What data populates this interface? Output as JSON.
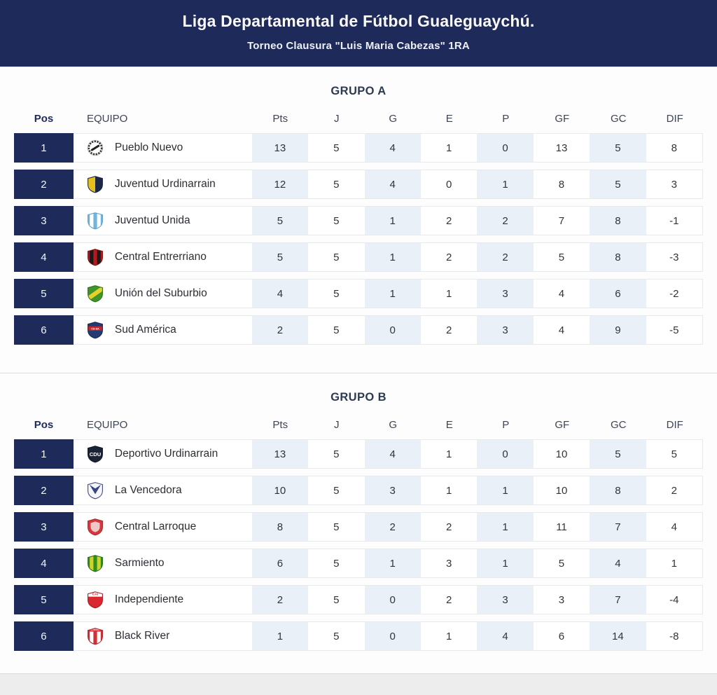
{
  "header": {
    "title": "Liga Departamental de Fútbol Gualeguaychú.",
    "subtitle": "Torneo Clausura \"Luis Maria Cabezas\" 1RA"
  },
  "columns": {
    "pos": "Pos",
    "team": "EQUIPO",
    "stats": [
      "Pts",
      "J",
      "G",
      "E",
      "P",
      "GF",
      "GC",
      "DIF"
    ]
  },
  "colors": {
    "navy": "#1d2a5a",
    "light_cell": "#e9f0f7",
    "card_bg": "#fdfdfd",
    "divider": "#d9dde2"
  },
  "groups": [
    {
      "title": "GRUPO A",
      "rows": [
        {
          "pos": 1,
          "team": "Pueblo Nuevo",
          "stats": [
            13,
            5,
            4,
            1,
            0,
            13,
            5,
            8
          ],
          "crest": {
            "kind": "wreath",
            "bg": "#ffffff",
            "ring": "#3a3a35",
            "bar": "#23231f"
          }
        },
        {
          "pos": 2,
          "team": "Juventud Urdinarrain",
          "stats": [
            12,
            5,
            4,
            0,
            1,
            8,
            5,
            3
          ],
          "crest": {
            "kind": "split",
            "colors": [
              "#e6bf1e",
              "#1c2746"
            ],
            "border": "#1c2746"
          }
        },
        {
          "pos": 3,
          "team": "Juventud Unida",
          "stats": [
            5,
            5,
            1,
            2,
            2,
            7,
            8,
            -1
          ],
          "crest": {
            "kind": "stripes",
            "colors": [
              "#72b4dc",
              "#ffffff",
              "#72b4dc",
              "#ffffff",
              "#72b4dc"
            ],
            "border": "#5d9fc7"
          }
        },
        {
          "pos": 4,
          "team": "Central Entrerriano",
          "stats": [
            5,
            5,
            1,
            2,
            2,
            5,
            8,
            -3
          ],
          "crest": {
            "kind": "stripes",
            "colors": [
              "#b9191d",
              "#19191b",
              "#b9191d",
              "#19191b",
              "#b9191d"
            ],
            "border": "#7e0f12"
          }
        },
        {
          "pos": 5,
          "team": "Unión del Suburbio",
          "stats": [
            4,
            5,
            1,
            1,
            3,
            4,
            6,
            -2
          ],
          "crest": {
            "kind": "sash",
            "bg": "#3f9527",
            "sash": "#e6d02c",
            "border": "#2d7119"
          }
        },
        {
          "pos": 6,
          "team": "Sud América",
          "stats": [
            2,
            5,
            0,
            2,
            3,
            4,
            9,
            -5
          ],
          "crest": {
            "kind": "band",
            "bg": "#243a72",
            "band": "#c4262c",
            "text": "CS-SA",
            "border": "#19294f"
          }
        }
      ]
    },
    {
      "title": "GRUPO B",
      "rows": [
        {
          "pos": 1,
          "team": "Deportivo Urdinarrain",
          "stats": [
            13,
            5,
            4,
            1,
            0,
            10,
            5,
            5
          ],
          "crest": {
            "kind": "mono",
            "bg": "#1b2437",
            "text": "CDU",
            "border": "#0e1320"
          }
        },
        {
          "pos": 2,
          "team": "La Vencedora",
          "stats": [
            10,
            5,
            3,
            1,
            1,
            10,
            8,
            2
          ],
          "crest": {
            "kind": "vee",
            "bg": "#f4f6fa",
            "v": "#37477f",
            "border": "#37477f"
          }
        },
        {
          "pos": 3,
          "team": "Central Larroque",
          "stats": [
            8,
            5,
            2,
            2,
            1,
            11,
            7,
            4
          ],
          "crest": {
            "kind": "inner",
            "bg": "#d5393f",
            "inner": "#efc7c7",
            "border": "#a8262c"
          }
        },
        {
          "pos": 4,
          "team": "Sarmiento",
          "stats": [
            6,
            5,
            1,
            3,
            1,
            5,
            4,
            1
          ],
          "crest": {
            "kind": "stripes",
            "colors": [
              "#2e8f1f",
              "#cfd42b",
              "#2e8f1f",
              "#cfd42b",
              "#2e8f1f"
            ],
            "border": "#236f15"
          }
        },
        {
          "pos": 5,
          "team": "Independiente",
          "stats": [
            2,
            5,
            0,
            2,
            3,
            3,
            7,
            -4
          ],
          "crest": {
            "kind": "captop",
            "bg": "#d8272e",
            "top": "#ffffff",
            "text": "CAI",
            "border": "#a81b21"
          }
        },
        {
          "pos": 6,
          "team": "Black River",
          "stats": [
            1,
            5,
            0,
            1,
            4,
            6,
            14,
            -8
          ],
          "crest": {
            "kind": "stripes",
            "colors": [
              "#d03036",
              "#ffffff",
              "#d03036",
              "#ffffff",
              "#d03036"
            ],
            "top": "#d03036",
            "top_text": "B.RIVER",
            "border": "#a8262c"
          }
        }
      ]
    }
  ]
}
